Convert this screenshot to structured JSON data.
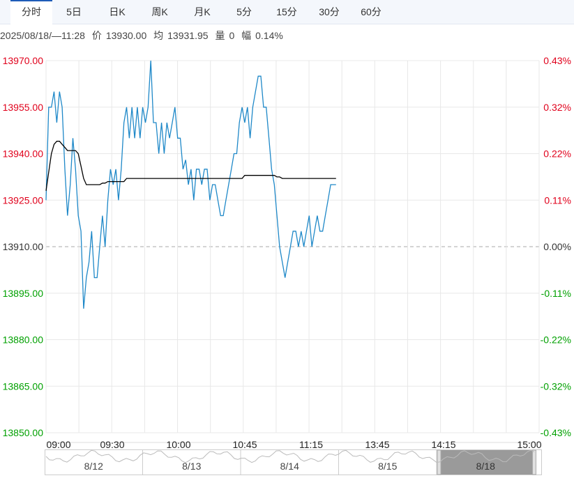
{
  "tabs": [
    {
      "label": "分时",
      "active": true
    },
    {
      "label": "5日",
      "active": false
    },
    {
      "label": "日K",
      "active": false
    },
    {
      "label": "周K",
      "active": false
    },
    {
      "label": "月K",
      "active": false
    },
    {
      "label": "5分",
      "active": false
    },
    {
      "label": "15分",
      "active": false
    },
    {
      "label": "30分",
      "active": false
    },
    {
      "label": "60分",
      "active": false
    }
  ],
  "infobar": {
    "datetime": "2025/08/18/—11:28",
    "price_label": "价",
    "price": "13930.00",
    "avg_label": "均",
    "avg": "13931.95",
    "volume_label": "量",
    "volume": "0",
    "change_label": "幅",
    "change": "0.14%"
  },
  "colors": {
    "up": "#e0001b",
    "down": "#00a000",
    "price_line": "#1e88c8",
    "avg_line": "#000000",
    "grid": "#e8e8e8"
  },
  "chart_data": {
    "type": "line",
    "prev_close": 13910,
    "ylim": [
      13850,
      13970
    ],
    "y_ticks": [
      "13970.00",
      "13955.00",
      "13940.00",
      "13925.00",
      "13910.00",
      "13895.00",
      "13880.00",
      "13865.00",
      "13850.00"
    ],
    "y_tick_values": [
      13970,
      13955,
      13940,
      13925,
      13910,
      13895,
      13880,
      13865,
      13850
    ],
    "pct_ticks": [
      "0.43%",
      "0.32%",
      "0.22%",
      "0.11%",
      "0.00%",
      "-0.11%",
      "-0.22%",
      "-0.32%",
      "-0.43%"
    ],
    "x_ticks": [
      "09:00",
      "09:30",
      "10:00",
      "10:45",
      "11:15",
      "13:45",
      "14:15",
      "15:00"
    ],
    "series": [
      {
        "kind": "price",
        "values": [
          13925,
          13955,
          13955,
          13960,
          13950,
          13960,
          13955,
          13935,
          13920,
          13930,
          13945,
          13935,
          13920,
          13915,
          13890,
          13900,
          13905,
          13915,
          13900,
          13900,
          13910,
          13920,
          13910,
          13925,
          13935,
          13930,
          13935,
          13925,
          13935,
          13950,
          13955,
          13945,
          13955,
          13945,
          13955,
          13945,
          13955,
          13950,
          13955,
          13970,
          13950,
          13950,
          13940,
          13950,
          13940,
          13950,
          13945,
          13950,
          13955,
          13945,
          13945,
          13935,
          13938,
          13930,
          13935,
          13925,
          13935,
          13935,
          13930,
          13935,
          13935,
          13925,
          13930,
          13930,
          13925,
          13920,
          13920,
          13925,
          13930,
          13935,
          13940,
          13940,
          13950,
          13955,
          13950,
          13955,
          13945,
          13955,
          13960,
          13965,
          13965,
          13955,
          13955,
          13945,
          13935,
          13930,
          13920,
          13910,
          13905,
          13900,
          13905,
          13910,
          13915,
          13915,
          13910,
          13915,
          13910,
          13915,
          13920,
          13910,
          13915,
          13920,
          13915,
          13915,
          13920,
          13925,
          13930,
          13930,
          13930
        ]
      },
      {
        "kind": "average",
        "values": [
          13928,
          13934,
          13940,
          13943,
          13944,
          13944,
          13943,
          13942,
          13941,
          13941,
          13941,
          13941,
          13940,
          13936,
          13932,
          13930,
          13930,
          13930,
          13930,
          13930,
          13930,
          13930.5,
          13930.5,
          13931,
          13931,
          13931,
          13931,
          13931,
          13931,
          13931,
          13932,
          13932,
          13932,
          13932,
          13932,
          13932,
          13932,
          13932,
          13932,
          13932,
          13932,
          13932,
          13932,
          13932,
          13932,
          13932,
          13932,
          13932,
          13932,
          13932,
          13932,
          13932,
          13932,
          13932,
          13932,
          13932,
          13932,
          13932,
          13932,
          13932,
          13932,
          13932,
          13932,
          13932,
          13932,
          13932,
          13932,
          13932,
          13932,
          13932,
          13932,
          13932,
          13932,
          13932,
          13933,
          13933,
          13933,
          13933,
          13933,
          13933,
          13933,
          13933,
          13933,
          13933,
          13933,
          13933,
          13932.5,
          13932.5,
          13932,
          13932,
          13932,
          13932,
          13932,
          13932,
          13932,
          13932,
          13932,
          13932,
          13932,
          13932,
          13932,
          13932,
          13932,
          13932,
          13932,
          13932,
          13932,
          13932,
          13932
        ]
      }
    ],
    "grid": true
  },
  "navigator": {
    "labels": [
      "8/12",
      "8/13",
      "8/14",
      "8/15",
      "8/18"
    ],
    "selected_index": 4
  }
}
